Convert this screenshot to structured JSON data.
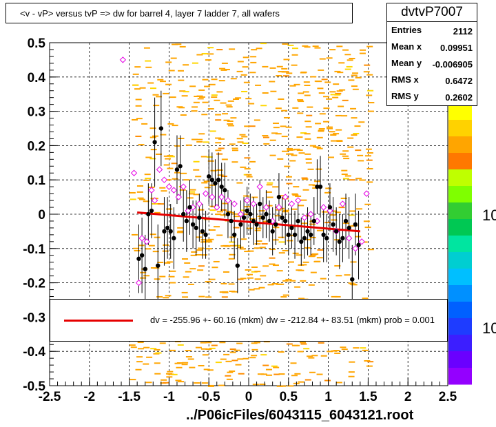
{
  "title": "<v - vP>       versus  tvP =>  dw for barrel 4, layer 7 ladder 7, all wafers",
  "stats": {
    "name": "dvtvP7007",
    "rows": [
      {
        "label": "Entries",
        "value": "2112"
      },
      {
        "label": "Mean x",
        "value": "0.09951"
      },
      {
        "label": "Mean y",
        "value": "-0.006905"
      },
      {
        "label": "RMS x",
        "value": "0.6472"
      },
      {
        "label": "RMS y",
        "value": "0.2602"
      }
    ]
  },
  "legend": {
    "text": "dv = -255.96 +- 60.16 (mkm) dw = -212.84 +- 83.51 (mkm) prob = 0.001",
    "color": "#e60000"
  },
  "footer": "../P06icFiles/6043115_6043121.root",
  "palette_labels": [
    "10",
    "10"
  ],
  "chart_data": {
    "type": "scatter",
    "xlim": [
      -2.5,
      2.5
    ],
    "ylim": [
      -0.5,
      0.5
    ],
    "x_ticks": [
      "-2.5",
      "-2",
      "-1.5",
      "-1",
      "-0.5",
      "0",
      "0.5",
      "1",
      "1.5",
      "2",
      "2.5"
    ],
    "y_ticks": [
      "-0.5",
      "-0.4",
      "-0.3",
      "-0.2",
      "-0.1",
      "0",
      "0.1",
      "0.2",
      "0.3",
      "0.4",
      "0.5"
    ],
    "grid": true,
    "fit_line": {
      "x": [
        -1.4,
        1.4
      ],
      "y": [
        0.005,
        -0.05
      ],
      "color": "#e60000"
    },
    "series": [
      {
        "marker": "filled-circle",
        "color": "#000000",
        "x": [
          -1.38,
          -1.34,
          -1.3,
          -1.26,
          -1.22,
          -1.18,
          -1.14,
          -1.1,
          -1.06,
          -1.02,
          -0.98,
          -0.94,
          -0.9,
          -0.86,
          -0.82,
          -0.78,
          -0.74,
          -0.7,
          -0.66,
          -0.62,
          -0.58,
          -0.54,
          -0.5,
          -0.46,
          -0.42,
          -0.38,
          -0.34,
          -0.3,
          -0.26,
          -0.22,
          -0.18,
          -0.14,
          -0.1,
          -0.06,
          -0.02,
          0.02,
          0.06,
          0.1,
          0.14,
          0.18,
          0.22,
          0.26,
          0.3,
          0.34,
          0.38,
          0.42,
          0.46,
          0.5,
          0.54,
          0.58,
          0.62,
          0.66,
          0.7,
          0.74,
          0.78,
          0.82,
          0.86,
          0.9,
          0.94,
          0.98,
          1.02,
          1.06,
          1.1,
          1.14,
          1.18,
          1.22,
          1.26,
          1.3,
          1.34,
          1.38
        ],
        "y": [
          -0.13,
          -0.12,
          -0.16,
          0.0,
          0.01,
          0.21,
          -0.15,
          0.25,
          -0.05,
          -0.04,
          -0.05,
          -0.07,
          0.13,
          0.14,
          0.0,
          -0.02,
          0.02,
          -0.03,
          -0.04,
          -0.01,
          -0.05,
          -0.06,
          0.11,
          0.1,
          0.09,
          0.1,
          0.08,
          0.07,
          0.0,
          -0.02,
          -0.06,
          -0.15,
          -0.03,
          -0.01,
          0.01,
          0.0,
          -0.02,
          -0.03,
          0.03,
          -0.01,
          0.0,
          -0.02,
          -0.05,
          -0.03,
          0.05,
          -0.01,
          -0.02,
          -0.06,
          -0.04,
          -0.06,
          -0.02,
          -0.08,
          -0.07,
          -0.05,
          -0.06,
          -0.02,
          0.08,
          0.08,
          -0.06,
          -0.07,
          0.02,
          -0.03,
          -0.05,
          -0.08,
          -0.07,
          -0.02,
          -0.04,
          -0.19,
          -0.03,
          -0.09
        ],
        "err": [
          0.1,
          0.11,
          0.1,
          0.09,
          0.08,
          0.13,
          0.12,
          0.11,
          0.1,
          0.09,
          0.08,
          0.09,
          0.1,
          0.09,
          0.08,
          0.09,
          0.08,
          0.07,
          0.08,
          0.07,
          0.08,
          0.07,
          0.08,
          0.08,
          0.07,
          0.08,
          0.07,
          0.08,
          0.07,
          0.06,
          0.07,
          0.08,
          0.07,
          0.06,
          0.07,
          0.06,
          0.07,
          0.06,
          0.07,
          0.06,
          0.07,
          0.06,
          0.07,
          0.06,
          0.07,
          0.06,
          0.07,
          0.06,
          0.06,
          0.07,
          0.06,
          0.07,
          0.06,
          0.07,
          0.06,
          0.07,
          0.08,
          0.09,
          0.08,
          0.07,
          0.07,
          0.08,
          0.07,
          0.08,
          0.07,
          0.08,
          0.09,
          0.1,
          0.09,
          0.1
        ]
      },
      {
        "marker": "open-diamond",
        "color": "#e600e6",
        "x": [
          -1.58,
          -1.44,
          -1.38,
          -1.34,
          -1.28,
          -1.22,
          -1.18,
          -1.12,
          -1.06,
          -1.0,
          -0.94,
          -0.88,
          -0.82,
          -0.76,
          -0.7,
          -0.62,
          -0.54,
          -0.46,
          -0.4,
          -0.34,
          -0.26,
          -0.18,
          -0.1,
          -0.02,
          0.06,
          0.14,
          0.22,
          0.3,
          0.38,
          0.46,
          0.54,
          0.62,
          0.7,
          0.78,
          0.86,
          0.94,
          1.02,
          1.1,
          1.18,
          1.26,
          1.34,
          1.42,
          1.48
        ],
        "y": [
          0.45,
          0.12,
          -0.2,
          -0.07,
          -0.08,
          0.07,
          0.04,
          0.13,
          0.1,
          0.08,
          0.07,
          0.05,
          0.08,
          0.01,
          0.02,
          0.03,
          0.06,
          0.05,
          0.02,
          0.05,
          0.04,
          0.03,
          0.0,
          0.04,
          0.03,
          0.08,
          0.02,
          -0.02,
          0.02,
          0.05,
          0.03,
          0.04,
          -0.01,
          0.0,
          -0.02,
          0.02,
          0.01,
          -0.05,
          0.03,
          -0.07,
          -0.1,
          -0.08,
          0.06
        ]
      }
    ]
  }
}
